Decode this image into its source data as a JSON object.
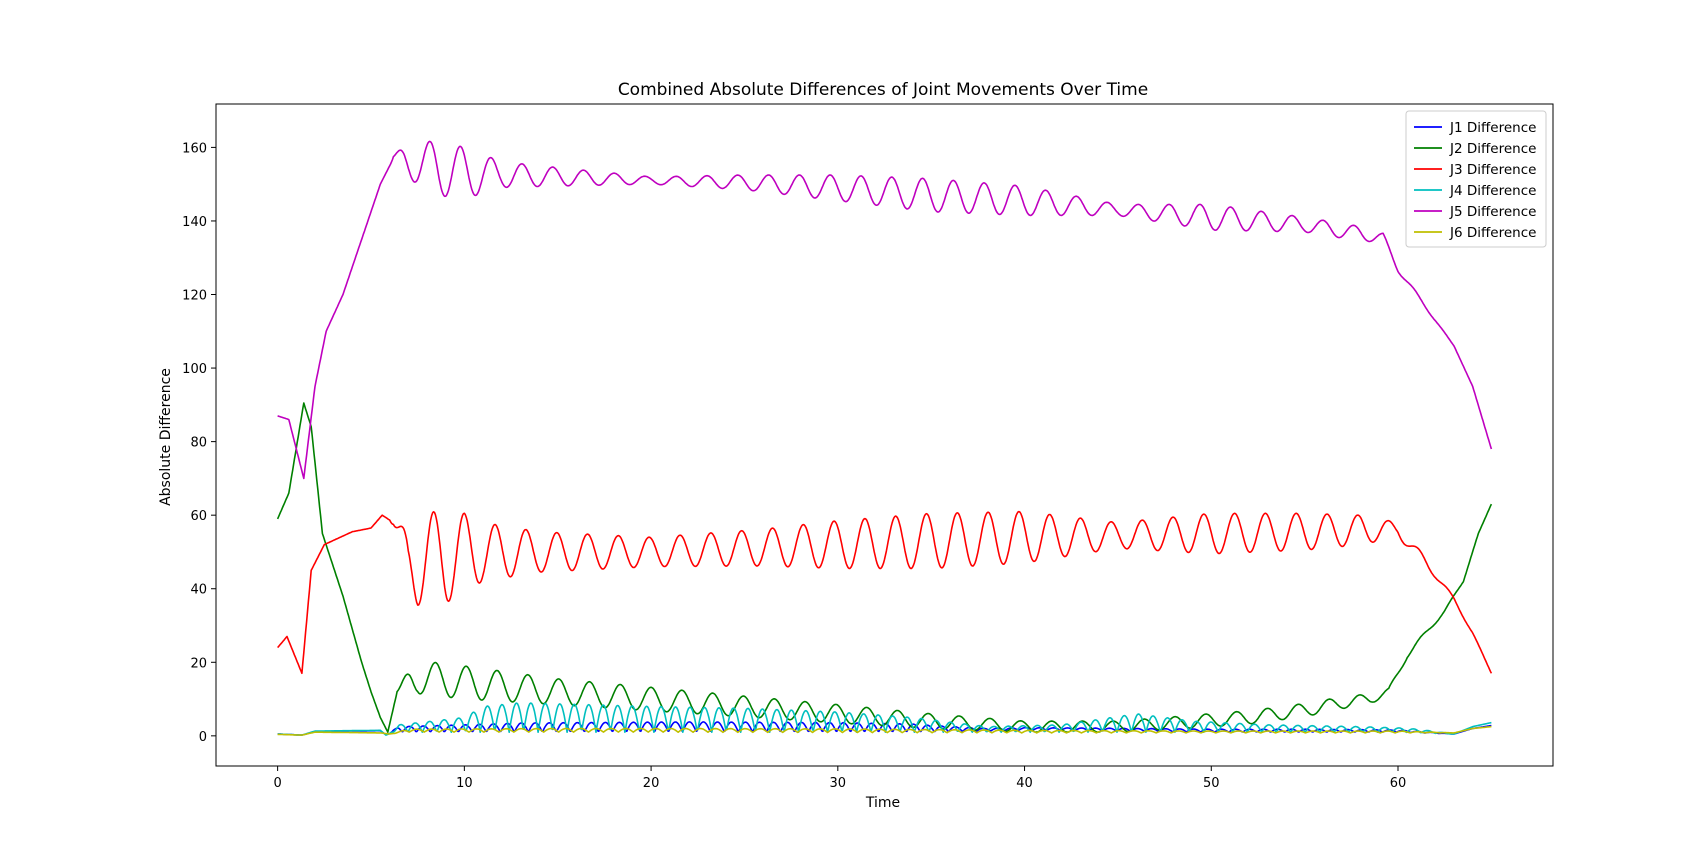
{
  "chart_data": {
    "type": "line",
    "title": "Combined Absolute Differences of Joint Movements Over Time",
    "xlabel": "Time",
    "ylabel": "Absolute Difference",
    "xlim": [
      -3.3,
      68.3
    ],
    "ylim": [
      -8.2,
      171.8
    ],
    "xticks": [
      0,
      10,
      20,
      30,
      40,
      50,
      60
    ],
    "yticks": [
      0,
      20,
      40,
      60,
      80,
      100,
      120,
      140,
      160
    ],
    "grid": false,
    "legend": {
      "position": "top-right"
    },
    "series": [
      {
        "name": "J1 Difference",
        "color": "#0000ff",
        "kind": "osc",
        "base": [
          [
            0,
            0.5
          ],
          [
            1.3,
            0.2
          ],
          [
            2,
            1.2
          ],
          [
            5.5,
            1.4
          ],
          [
            5.8,
            0.3
          ],
          [
            6.2,
            1
          ],
          [
            20,
            1
          ],
          [
            35,
            1
          ],
          [
            40,
            1.5
          ],
          [
            50,
            1
          ],
          [
            60,
            1
          ],
          [
            63,
            0.5
          ],
          [
            64,
            2
          ],
          [
            65,
            2.8
          ]
        ],
        "amp": [
          [
            0,
            0
          ],
          [
            6,
            0
          ],
          [
            6.5,
            1.5
          ],
          [
            10,
            2
          ],
          [
            13,
            2.5
          ],
          [
            22,
            2.8
          ],
          [
            30,
            2.6
          ],
          [
            34,
            2.2
          ],
          [
            38,
            0.7
          ],
          [
            45,
            0.8
          ],
          [
            55,
            0.8
          ],
          [
            60,
            0.6
          ],
          [
            63,
            0
          ],
          [
            65,
            0
          ]
        ],
        "period": 1.5,
        "phase": 0.3,
        "shape": "abs"
      },
      {
        "name": "J2 Difference",
        "color": "#008000",
        "kind": "osc",
        "base": [
          [
            0,
            59
          ],
          [
            0.6,
            66
          ],
          [
            1.4,
            90.5
          ],
          [
            1.8,
            84
          ],
          [
            2.4,
            55
          ],
          [
            3.5,
            38
          ],
          [
            4.5,
            20
          ],
          [
            5.0,
            12
          ],
          [
            5.5,
            5
          ],
          [
            5.9,
            1
          ],
          [
            6.4,
            12
          ],
          [
            7.5,
            16
          ],
          [
            10,
            14.5
          ],
          [
            15,
            12
          ],
          [
            20,
            10
          ],
          [
            25,
            8
          ],
          [
            30,
            6
          ],
          [
            35,
            4
          ],
          [
            40,
            2.5
          ],
          [
            45,
            2.5
          ],
          [
            48,
            3.5
          ],
          [
            52,
            5
          ],
          [
            55,
            7
          ],
          [
            57,
            9
          ],
          [
            58.5,
            10
          ],
          [
            59.5,
            12
          ],
          [
            60.5,
            22
          ],
          [
            61.5,
            28
          ],
          [
            62.5,
            34
          ],
          [
            63.5,
            42
          ],
          [
            64.3,
            55
          ],
          [
            65.0,
            63
          ]
        ],
        "amp": [
          [
            0,
            0
          ],
          [
            6.3,
            0
          ],
          [
            7.2,
            4.5
          ],
          [
            10,
            4.5
          ],
          [
            15,
            3.5
          ],
          [
            20,
            3.2
          ],
          [
            25,
            2.8
          ],
          [
            30,
            2.5
          ],
          [
            35,
            2
          ],
          [
            40,
            1.5
          ],
          [
            45,
            1.5
          ],
          [
            50,
            1.8
          ],
          [
            55,
            1.8
          ],
          [
            58,
            1.5
          ],
          [
            60,
            0.8
          ],
          [
            62,
            0.5
          ],
          [
            64,
            0
          ],
          [
            65,
            0
          ]
        ],
        "period": 1.65,
        "phase": 0.8
      },
      {
        "name": "J3 Difference",
        "color": "#ff0000",
        "kind": "osc",
        "base": [
          [
            0,
            24
          ],
          [
            0.5,
            27
          ],
          [
            1.3,
            17
          ],
          [
            1.8,
            45
          ],
          [
            2.5,
            52
          ],
          [
            4,
            55.5
          ],
          [
            5,
            56.5
          ],
          [
            5.6,
            60
          ],
          [
            6.2,
            58
          ],
          [
            7,
            47
          ],
          [
            10,
            50
          ],
          [
            15,
            50
          ],
          [
            20,
            50
          ],
          [
            25,
            51
          ],
          [
            30,
            52
          ],
          [
            35,
            53
          ],
          [
            40,
            54
          ],
          [
            45,
            54.5
          ],
          [
            50,
            55
          ],
          [
            55,
            55.5
          ],
          [
            58,
            56
          ],
          [
            60,
            56
          ],
          [
            61,
            50
          ],
          [
            62,
            44
          ],
          [
            63,
            37
          ],
          [
            64,
            28
          ],
          [
            65,
            17
          ]
        ],
        "amp": [
          [
            0,
            0
          ],
          [
            6,
            0
          ],
          [
            7.5,
            12
          ],
          [
            9,
            13
          ],
          [
            11,
            8
          ],
          [
            14,
            5.5
          ],
          [
            20,
            4
          ],
          [
            26,
            5
          ],
          [
            30,
            6.5
          ],
          [
            35,
            7.5
          ],
          [
            40,
            7
          ],
          [
            45,
            3.5
          ],
          [
            50,
            5.5
          ],
          [
            55,
            5
          ],
          [
            58,
            4
          ],
          [
            60,
            2
          ],
          [
            63,
            0.5
          ],
          [
            65,
            0
          ]
        ],
        "period": 1.65,
        "phase": 1.2
      },
      {
        "name": "J4 Difference",
        "color": "#00bfbf",
        "kind": "osc",
        "base": [
          [
            0,
            0.5
          ],
          [
            1.3,
            0.2
          ],
          [
            2,
            1.3
          ],
          [
            5.5,
            1.5
          ],
          [
            5.8,
            0.2
          ],
          [
            6.2,
            1
          ],
          [
            20,
            1
          ],
          [
            35,
            1
          ],
          [
            40,
            1
          ],
          [
            45,
            1
          ],
          [
            50,
            1
          ],
          [
            60,
            1
          ],
          [
            63,
            0.5
          ],
          [
            64,
            2.5
          ],
          [
            65,
            3.6
          ]
        ],
        "amp": [
          [
            0,
            0
          ],
          [
            6,
            0
          ],
          [
            6.5,
            2
          ],
          [
            10,
            4
          ],
          [
            11,
            7
          ],
          [
            13,
            8
          ],
          [
            20,
            7
          ],
          [
            25,
            6.5
          ],
          [
            30,
            5.5
          ],
          [
            34,
            4
          ],
          [
            38,
            1.5
          ],
          [
            42,
            2
          ],
          [
            46,
            5
          ],
          [
            49,
            3
          ],
          [
            53,
            2
          ],
          [
            58,
            1.5
          ],
          [
            61,
            1
          ],
          [
            63,
            0
          ],
          [
            65,
            0
          ]
        ],
        "period": 1.55,
        "phase": 0,
        "shape": "abs"
      },
      {
        "name": "J5 Difference",
        "color": "#bf00bf",
        "kind": "osc",
        "base": [
          [
            0,
            87
          ],
          [
            0.6,
            86
          ],
          [
            1.4,
            70
          ],
          [
            2.0,
            95
          ],
          [
            2.6,
            110
          ],
          [
            3.5,
            120
          ],
          [
            4.5,
            135
          ],
          [
            5.5,
            150
          ],
          [
            6.2,
            157
          ],
          [
            7,
            156
          ],
          [
            10,
            153
          ],
          [
            15,
            152
          ],
          [
            20,
            151
          ],
          [
            25,
            150.5
          ],
          [
            30,
            149
          ],
          [
            35,
            147
          ],
          [
            40,
            145.5
          ],
          [
            45,
            143
          ],
          [
            50,
            141
          ],
          [
            55,
            139
          ],
          [
            58,
            136.5
          ],
          [
            59.2,
            135.5
          ],
          [
            60,
            127
          ],
          [
            61,
            120
          ],
          [
            62,
            113
          ],
          [
            63,
            106
          ],
          [
            64,
            95
          ],
          [
            65,
            78
          ]
        ],
        "amp": [
          [
            0,
            0
          ],
          [
            6,
            0
          ],
          [
            6.8,
            4
          ],
          [
            8.5,
            7.5
          ],
          [
            10,
            7
          ],
          [
            12,
            3.5
          ],
          [
            15,
            2.5
          ],
          [
            20,
            1
          ],
          [
            25,
            2
          ],
          [
            30,
            3.5
          ],
          [
            35,
            4.5
          ],
          [
            40,
            4
          ],
          [
            45,
            1.5
          ],
          [
            50,
            3.5
          ],
          [
            55,
            2
          ],
          [
            58,
            2
          ],
          [
            59.5,
            1
          ],
          [
            61,
            0.5
          ],
          [
            63,
            0
          ],
          [
            65,
            0
          ]
        ],
        "period": 1.65,
        "phase": 2.0
      },
      {
        "name": "J6 Difference",
        "color": "#bfbf00",
        "kind": "osc",
        "base": [
          [
            0,
            0.4
          ],
          [
            1.3,
            0.2
          ],
          [
            2,
            1
          ],
          [
            5.5,
            0.8
          ],
          [
            6,
            0.5
          ],
          [
            7,
            1
          ],
          [
            20,
            1
          ],
          [
            40,
            0.8
          ],
          [
            50,
            0.8
          ],
          [
            60,
            0.8
          ],
          [
            63,
            0.8
          ],
          [
            64,
            2
          ],
          [
            65,
            2.5
          ]
        ],
        "amp": [
          [
            0,
            0
          ],
          [
            6,
            0
          ],
          [
            7,
            0.8
          ],
          [
            15,
            1
          ],
          [
            30,
            1
          ],
          [
            40,
            0.7
          ],
          [
            50,
            0.5
          ],
          [
            60,
            0.5
          ],
          [
            63,
            0
          ],
          [
            65,
            0
          ]
        ],
        "period": 1.6,
        "phase": 0.6,
        "shape": "abs"
      }
    ]
  }
}
